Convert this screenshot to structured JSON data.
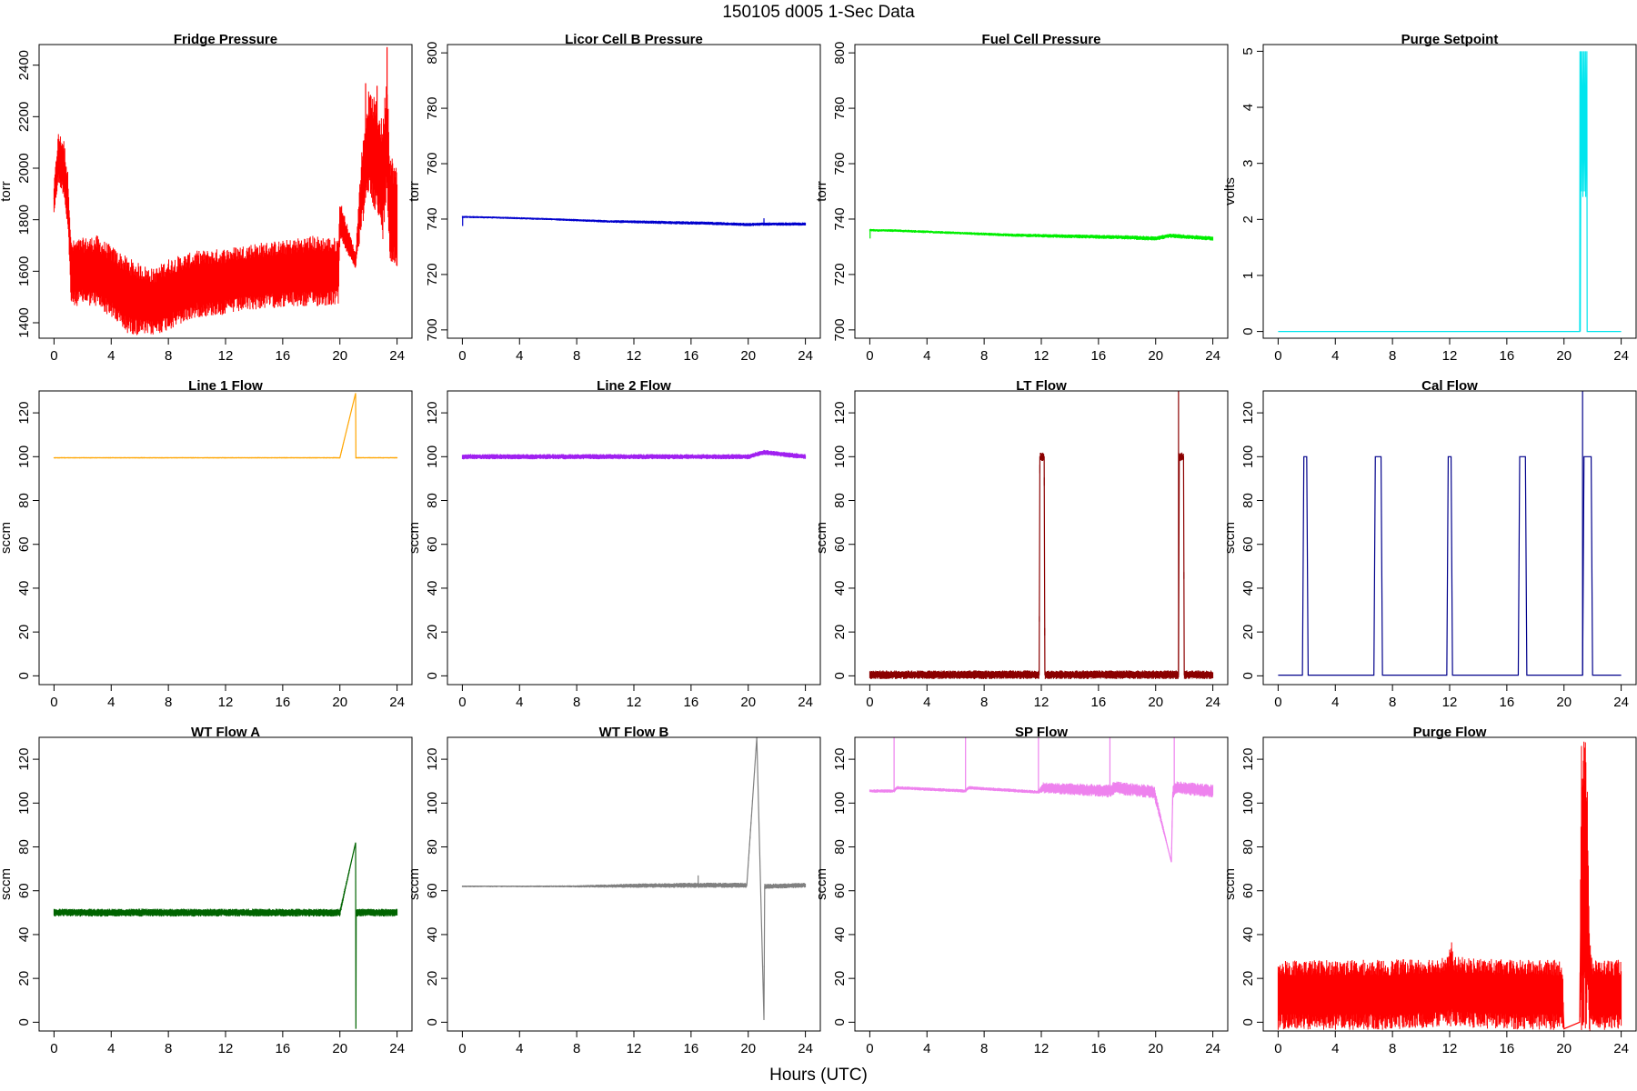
{
  "figure": {
    "title": "150105    d005    1-Sec Data",
    "xlabel": "Hours (UTC)"
  },
  "chart_data": [
    {
      "type": "line",
      "title": "Fridge Pressure",
      "ylabel": "torr",
      "color": "#ff0000",
      "xlim": [
        0,
        24
      ],
      "xticks": [
        0,
        4,
        8,
        12,
        16,
        20,
        24
      ],
      "ylim": [
        1340,
        2480
      ],
      "yticks": [
        1400,
        1600,
        1800,
        2000,
        2200,
        2400
      ],
      "series": [
        {
          "x": [
            0,
            0.3,
            0.7,
            1.0,
            1.2,
            2,
            3,
            4,
            5,
            6,
            7,
            8,
            10,
            12,
            14,
            16,
            18,
            19.9,
            20,
            21.1,
            21.5,
            22,
            22.5,
            23,
            23.3,
            23.5,
            24
          ],
          "y": [
            1880,
            2040,
            2000,
            1850,
            1590,
            1600,
            1600,
            1560,
            1510,
            1490,
            1480,
            1510,
            1550,
            1560,
            1580,
            1590,
            1600,
            1600,
            1800,
            1640,
            1900,
            2100,
            2050,
            1950,
            2150,
            1850,
            1800
          ],
          "band": [
            60,
            100,
            110,
            120,
            130,
            130,
            140,
            140,
            150,
            140,
            130,
            140,
            130,
            130,
            130,
            130,
            140,
            130,
            80,
            30,
            150,
            200,
            220,
            230,
            250,
            220,
            200
          ],
          "spikes": [
            {
              "x": 23.3,
              "y": 2470
            },
            {
              "x": 21.8,
              "y": 2330
            },
            {
              "x": 22.6,
              "y": 2320
            }
          ]
        }
      ]
    },
    {
      "type": "line",
      "title": "Licor Cell B Pressure",
      "ylabel": "torr",
      "color": "#0000cd",
      "xlim": [
        0,
        24
      ],
      "xticks": [
        0,
        4,
        8,
        12,
        16,
        20,
        24
      ],
      "ylim": [
        697,
        803
      ],
      "yticks": [
        700,
        720,
        740,
        760,
        780,
        800
      ],
      "series": [
        {
          "x": [
            0,
            2,
            6,
            10,
            14,
            18,
            20,
            21,
            24
          ],
          "y": [
            740.8,
            740.6,
            740,
            739.2,
            738.8,
            738.4,
            738,
            738.2,
            738.2
          ],
          "band": [
            0.4,
            0.4,
            0.4,
            0.5,
            0.6,
            0.6,
            0.6,
            0.6,
            0.6
          ],
          "spikes": [
            {
              "x": 0.02,
              "y": 737.5
            },
            {
              "x": 21.1,
              "y": 740.3
            }
          ]
        }
      ]
    },
    {
      "type": "line",
      "title": "Fuel Cell Pressure",
      "ylabel": "torr",
      "color": "#00ee00",
      "xlim": [
        0,
        24
      ],
      "xticks": [
        0,
        4,
        8,
        12,
        16,
        20,
        24
      ],
      "ylim": [
        697,
        803
      ],
      "yticks": [
        700,
        720,
        740,
        760,
        780,
        800
      ],
      "series": [
        {
          "x": [
            0,
            2,
            6,
            10,
            14,
            18,
            20,
            21,
            24
          ],
          "y": [
            736,
            735.8,
            735,
            734.2,
            733.8,
            733.4,
            733,
            734,
            733
          ],
          "band": [
            0.5,
            0.5,
            0.5,
            0.6,
            0.7,
            0.8,
            0.8,
            0.8,
            0.8
          ],
          "spikes": [
            {
              "x": 0.02,
              "y": 733
            }
          ]
        }
      ]
    },
    {
      "type": "line",
      "title": "Purge Setpoint",
      "ylabel": "volts",
      "color": "#00e5ee",
      "xlim": [
        0,
        24
      ],
      "xticks": [
        0,
        4,
        8,
        12,
        16,
        20,
        24
      ],
      "ylim": [
        -0.12,
        5.12
      ],
      "yticks": [
        0,
        1,
        2,
        3,
        4,
        5
      ],
      "series": [
        {
          "x": [
            0,
            21.1,
            21.12,
            21.14,
            21.2,
            21.22,
            21.3,
            21.32,
            21.4,
            21.42,
            21.5,
            21.52,
            21.6,
            21.62,
            24
          ],
          "y": [
            0,
            0,
            5,
            0,
            5,
            2.5,
            5,
            2.4,
            5,
            2.5,
            5,
            2.4,
            5,
            0,
            0
          ],
          "band": [
            0,
            0,
            0,
            0,
            0,
            0,
            0,
            0,
            0,
            0,
            0,
            0,
            0,
            0,
            0
          ],
          "spikes": []
        }
      ]
    },
    {
      "type": "line",
      "title": "Line 1 Flow",
      "ylabel": "sccm",
      "color": "#ffa500",
      "xlim": [
        0,
        24
      ],
      "xticks": [
        0,
        4,
        8,
        12,
        16,
        20,
        24
      ],
      "ylim": [
        -4,
        130
      ],
      "yticks": [
        0,
        20,
        40,
        60,
        80,
        100,
        120
      ],
      "series": [
        {
          "x": [
            0,
            20,
            21.1,
            21.12,
            24
          ],
          "y": [
            99.5,
            99.5,
            129,
            99.5,
            99.5
          ],
          "band": [
            0.3,
            0.3,
            0,
            0.3,
            0.3
          ],
          "spikes": []
        }
      ]
    },
    {
      "type": "line",
      "title": "Line 2 Flow",
      "ylabel": "sccm",
      "color": "#a020f0",
      "xlim": [
        0,
        24
      ],
      "xticks": [
        0,
        4,
        8,
        12,
        16,
        20,
        24
      ],
      "ylim": [
        -4,
        130
      ],
      "yticks": [
        0,
        20,
        40,
        60,
        80,
        100,
        120
      ],
      "series": [
        {
          "x": [
            0,
            20,
            21.1,
            24
          ],
          "y": [
            100,
            100,
            102,
            100
          ],
          "band": [
            1.2,
            1.2,
            1.2,
            1.2
          ],
          "spikes": []
        }
      ]
    },
    {
      "type": "line",
      "title": "LT Flow",
      "ylabel": "sccm",
      "color": "#8b0000",
      "xlim": [
        0,
        24
      ],
      "xticks": [
        0,
        4,
        8,
        12,
        16,
        20,
        24
      ],
      "ylim": [
        -4,
        130
      ],
      "yticks": [
        0,
        20,
        40,
        60,
        80,
        100,
        120
      ],
      "series": [
        {
          "x": [
            0,
            11.85,
            11.9,
            12.2,
            12.25,
            20,
            21.1,
            21.6,
            21.65,
            21.95,
            22.0,
            24
          ],
          "y": [
            0.5,
            0.5,
            100,
            100,
            0.5,
            0.5,
            0.5,
            0.5,
            100,
            100,
            0.5,
            0.5
          ],
          "band": [
            2,
            2,
            2,
            2,
            2,
            2,
            2,
            2,
            2,
            2,
            2,
            2
          ],
          "spikes": [
            {
              "x": 21.6,
              "y": 130
            }
          ]
        }
      ]
    },
    {
      "type": "line",
      "title": "Cal Flow",
      "ylabel": "sccm",
      "color": "#00008b",
      "xlim": [
        0,
        24
      ],
      "xticks": [
        0,
        4,
        8,
        12,
        16,
        20,
        24
      ],
      "ylim": [
        -4,
        130
      ],
      "yticks": [
        0,
        20,
        40,
        60,
        80,
        100,
        120
      ],
      "series": [
        {
          "x": [
            0,
            1.7,
            1.8,
            2.0,
            2.1,
            6.7,
            6.8,
            7.2,
            7.3,
            11.8,
            11.9,
            12.1,
            12.2,
            16.8,
            16.9,
            17.3,
            17.4,
            20,
            21.3,
            21.4,
            21.9,
            22.0,
            24
          ],
          "y": [
            0.3,
            0.3,
            100,
            100,
            0.3,
            0.3,
            100,
            100,
            0.3,
            0.3,
            100,
            100,
            0.3,
            0.3,
            100,
            100,
            0.3,
            0.3,
            0.3,
            100,
            100,
            0.3,
            0.3
          ],
          "band": [
            0,
            0,
            0,
            0,
            0,
            0,
            0,
            0,
            0,
            0,
            0,
            0,
            0,
            0,
            0,
            0,
            0,
            0,
            0,
            0,
            0,
            0,
            0
          ],
          "spikes": [
            {
              "x": 21.3,
              "y": 130
            }
          ]
        }
      ]
    },
    {
      "type": "line",
      "title": "WT Flow A",
      "ylabel": "sccm",
      "color": "#006400",
      "xlim": [
        0,
        24
      ],
      "xticks": [
        0,
        4,
        8,
        12,
        16,
        20,
        24
      ],
      "ylim": [
        -4,
        130
      ],
      "yticks": [
        0,
        20,
        40,
        60,
        80,
        100,
        120
      ],
      "series": [
        {
          "x": [
            0,
            20,
            21.1,
            21.12,
            21.14,
            24
          ],
          "y": [
            50,
            50,
            82,
            -3,
            50,
            50
          ],
          "band": [
            1.8,
            1.8,
            0,
            0,
            1.8,
            1.8
          ],
          "spikes": []
        }
      ]
    },
    {
      "type": "line",
      "title": "WT Flow B",
      "ylabel": "sccm",
      "color": "#808080",
      "xlim": [
        0,
        24
      ],
      "xticks": [
        0,
        4,
        8,
        12,
        16,
        20,
        24
      ],
      "ylim": [
        -4,
        130
      ],
      "yticks": [
        0,
        20,
        40,
        60,
        80,
        100,
        120
      ],
      "series": [
        {
          "x": [
            0,
            4,
            8,
            12,
            16,
            19.9,
            20.6,
            21.1,
            21.15,
            24
          ],
          "y": [
            62,
            62,
            62,
            62.3,
            62.5,
            62.5,
            130,
            1,
            62,
            62.5
          ],
          "band": [
            0.4,
            0.4,
            0.5,
            1,
            1.2,
            1.2,
            0,
            0,
            1.2,
            1.2
          ],
          "spikes": [
            {
              "x": 16.5,
              "y": 67
            }
          ]
        }
      ]
    },
    {
      "type": "line",
      "title": "SP Flow",
      "ylabel": "sccm",
      "color": "#ee82ee",
      "xlim": [
        0,
        24
      ],
      "xticks": [
        0,
        4,
        8,
        12,
        16,
        20,
        24
      ],
      "ylim": [
        -4,
        130
      ],
      "yticks": [
        0,
        20,
        40,
        60,
        80,
        100,
        120
      ],
      "series": [
        {
          "x": [
            0,
            1.7,
            1.9,
            6.7,
            6.9,
            11.8,
            12.1,
            16.8,
            17.1,
            19.9,
            21.1,
            21.2,
            21.5,
            24
          ],
          "y": [
            105.5,
            105.5,
            107,
            105.5,
            107,
            105,
            107,
            105.5,
            107,
            105,
            73,
            105,
            107,
            105.5
          ],
          "band": [
            0.8,
            0.8,
            0.8,
            0.8,
            0.8,
            0.8,
            2.5,
            3,
            3,
            3,
            0,
            3,
            3,
            3
          ],
          "spikes": [
            {
              "x": 1.7,
              "y": 130
            },
            {
              "x": 6.7,
              "y": 130
            },
            {
              "x": 11.8,
              "y": 130
            },
            {
              "x": 16.8,
              "y": 130
            },
            {
              "x": 21.3,
              "y": 130
            }
          ]
        }
      ]
    },
    {
      "type": "line",
      "title": "Purge Flow",
      "ylabel": "sccm",
      "color": "#ff0000",
      "xlim": [
        0,
        24
      ],
      "xticks": [
        0,
        4,
        8,
        12,
        16,
        20,
        24
      ],
      "ylim": [
        -4,
        130
      ],
      "yticks": [
        0,
        20,
        40,
        60,
        80,
        100,
        120
      ],
      "series": [
        {
          "x": [
            0,
            4,
            8,
            11.9,
            12.1,
            12.3,
            16,
            19.9,
            20,
            21.1,
            21.2,
            21.4,
            21.6,
            21.8,
            22,
            24
          ],
          "y": [
            12.5,
            12.5,
            12.5,
            14,
            18,
            14,
            12.5,
            12.5,
            -3,
            0,
            62,
            62,
            62,
            18,
            12.5,
            12.5
          ],
          "band": [
            16,
            16,
            16,
            16,
            20,
            16,
            16,
            16,
            0,
            0,
            67,
            67,
            67,
            22,
            16,
            16
          ],
          "spikes": [
            {
              "x": 21.5,
              "y": 40
            }
          ]
        }
      ]
    }
  ]
}
